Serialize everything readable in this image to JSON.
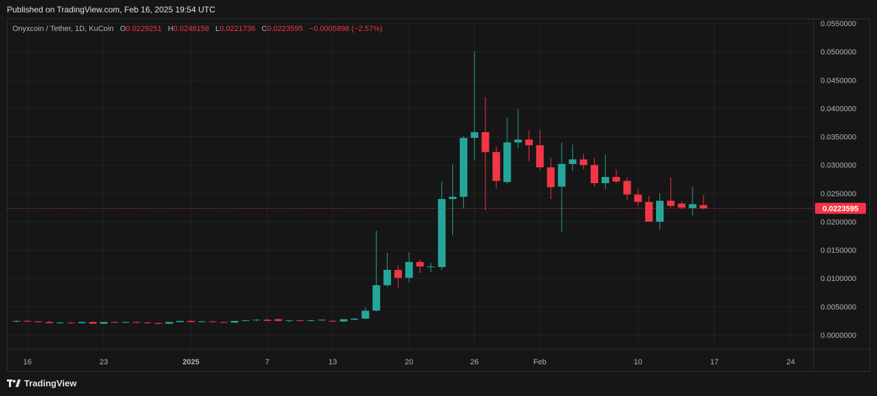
{
  "header": {
    "published": "Published on TradingView.com, Feb 16, 2025 19:54 UTC"
  },
  "legend": {
    "symbol": "Onyxcoin / Tether, 1D, KuCoin",
    "open_key": "O",
    "open": "0.0229251",
    "high_key": "H",
    "high": "0.0248158",
    "low_key": "L",
    "low": "0.0221736",
    "close_key": "C",
    "close": "0.0223595",
    "change": "−0.0005898 (−2.57%)"
  },
  "footer": {
    "brand": "TradingView",
    "logo_icon": "tradingview-logo-icon"
  },
  "colors": {
    "up": "#26a69a",
    "down": "#f23645",
    "price_line": "#f23645",
    "bg": "#161616",
    "grid": "#232323"
  },
  "chart_data": {
    "type": "candlestick",
    "ylim": [
      -0.002,
      0.056
    ],
    "y_ticks": [
      "0.0550000",
      "0.0500000",
      "0.0450000",
      "0.0400000",
      "0.0350000",
      "0.0300000",
      "0.0250000",
      "0.0200000",
      "0.0150000",
      "0.0100000",
      "0.0050000",
      "0.0000000"
    ],
    "y_tick_values": [
      0.055,
      0.05,
      0.045,
      0.04,
      0.035,
      0.03,
      0.025,
      0.02,
      0.015,
      0.01,
      0.005,
      0
    ],
    "x_ticks": [
      {
        "label": "16",
        "index": 1
      },
      {
        "label": "23",
        "index": 8
      },
      {
        "label": "2025",
        "index": 16,
        "bold": true
      },
      {
        "label": "7",
        "index": 23
      },
      {
        "label": "13",
        "index": 29
      },
      {
        "label": "20",
        "index": 36
      },
      {
        "label": "26",
        "index": 42
      },
      {
        "label": "Feb",
        "index": 48
      },
      {
        "label": "10",
        "index": 57
      },
      {
        "label": "17",
        "index": 64
      },
      {
        "label": "24",
        "index": 71
      }
    ],
    "last_price": 0.0223595,
    "last_price_label": "0.0223595",
    "candles": [
      {
        "o": 0.0024,
        "h": 0.0026,
        "l": 0.0023,
        "c": 0.0025
      },
      {
        "o": 0.0025,
        "h": 0.0026,
        "l": 0.0023,
        "c": 0.0024
      },
      {
        "o": 0.0024,
        "h": 0.0025,
        "l": 0.0022,
        "c": 0.0023
      },
      {
        "o": 0.0023,
        "h": 0.0025,
        "l": 0.0021,
        "c": 0.0021
      },
      {
        "o": 0.0021,
        "h": 0.0023,
        "l": 0.002,
        "c": 0.0022
      },
      {
        "o": 0.0022,
        "h": 0.0023,
        "l": 0.002,
        "c": 0.0021
      },
      {
        "o": 0.0021,
        "h": 0.0024,
        "l": 0.002,
        "c": 0.0023
      },
      {
        "o": 0.0023,
        "h": 0.0024,
        "l": 0.0021,
        "c": 0.002
      },
      {
        "o": 0.002,
        "h": 0.0023,
        "l": 0.0019,
        "c": 0.0023
      },
      {
        "o": 0.0023,
        "h": 0.0024,
        "l": 0.0021,
        "c": 0.0022
      },
      {
        "o": 0.0022,
        "h": 0.0024,
        "l": 0.0021,
        "c": 0.0023
      },
      {
        "o": 0.0023,
        "h": 0.0024,
        "l": 0.0021,
        "c": 0.0022
      },
      {
        "o": 0.0022,
        "h": 0.0023,
        "l": 0.002,
        "c": 0.0021
      },
      {
        "o": 0.0021,
        "h": 0.0023,
        "l": 0.0019,
        "c": 0.002
      },
      {
        "o": 0.002,
        "h": 0.0023,
        "l": 0.0019,
        "c": 0.0023
      },
      {
        "o": 0.0023,
        "h": 0.0025,
        "l": 0.0022,
        "c": 0.0025
      },
      {
        "o": 0.0025,
        "h": 0.0026,
        "l": 0.0023,
        "c": 0.0023
      },
      {
        "o": 0.0023,
        "h": 0.0025,
        "l": 0.0022,
        "c": 0.0024
      },
      {
        "o": 0.0024,
        "h": 0.0025,
        "l": 0.0022,
        "c": 0.0023
      },
      {
        "o": 0.0023,
        "h": 0.0024,
        "l": 0.0022,
        "c": 0.0022
      },
      {
        "o": 0.0022,
        "h": 0.0025,
        "l": 0.0021,
        "c": 0.0025
      },
      {
        "o": 0.0025,
        "h": 0.0027,
        "l": 0.0024,
        "c": 0.0026
      },
      {
        "o": 0.0026,
        "h": 0.0028,
        "l": 0.0025,
        "c": 0.0027
      },
      {
        "o": 0.0027,
        "h": 0.0029,
        "l": 0.0025,
        "c": 0.0025
      },
      {
        "o": 0.0028,
        "h": 0.0029,
        "l": 0.0024,
        "c": 0.0025
      },
      {
        "o": 0.0025,
        "h": 0.0026,
        "l": 0.0023,
        "c": 0.0026
      },
      {
        "o": 0.0026,
        "h": 0.0027,
        "l": 0.0024,
        "c": 0.0025
      },
      {
        "o": 0.0025,
        "h": 0.0027,
        "l": 0.0024,
        "c": 0.0026
      },
      {
        "o": 0.0026,
        "h": 0.0028,
        "l": 0.0025,
        "c": 0.0027
      },
      {
        "o": 0.0025,
        "h": 0.0026,
        "l": 0.0023,
        "c": 0.0024
      },
      {
        "o": 0.0024,
        "h": 0.0028,
        "l": 0.0023,
        "c": 0.0028
      },
      {
        "o": 0.0027,
        "h": 0.003,
        "l": 0.0026,
        "c": 0.0029
      },
      {
        "o": 0.0029,
        "h": 0.0048,
        "l": 0.0028,
        "c": 0.0043
      },
      {
        "o": 0.0043,
        "h": 0.0184,
        "l": 0.0042,
        "c": 0.0088
      },
      {
        "o": 0.0088,
        "h": 0.0145,
        "l": 0.0085,
        "c": 0.0115
      },
      {
        "o": 0.0115,
        "h": 0.0123,
        "l": 0.0082,
        "c": 0.0101
      },
      {
        "o": 0.0101,
        "h": 0.0146,
        "l": 0.0093,
        "c": 0.0129
      },
      {
        "o": 0.0129,
        "h": 0.0133,
        "l": 0.011,
        "c": 0.0121
      },
      {
        "o": 0.0121,
        "h": 0.0127,
        "l": 0.0111,
        "c": 0.0121
      },
      {
        "o": 0.012,
        "h": 0.027,
        "l": 0.0115,
        "c": 0.024
      },
      {
        "o": 0.024,
        "h": 0.0301,
        "l": 0.0176,
        "c": 0.0244
      },
      {
        "o": 0.0244,
        "h": 0.0351,
        "l": 0.0223,
        "c": 0.0348
      },
      {
        "o": 0.0348,
        "h": 0.05,
        "l": 0.031,
        "c": 0.0358
      },
      {
        "o": 0.0358,
        "h": 0.042,
        "l": 0.022,
        "c": 0.0323
      },
      {
        "o": 0.0323,
        "h": 0.0333,
        "l": 0.0258,
        "c": 0.0272
      },
      {
        "o": 0.027,
        "h": 0.0383,
        "l": 0.0267,
        "c": 0.034
      },
      {
        "o": 0.034,
        "h": 0.0399,
        "l": 0.033,
        "c": 0.0345
      },
      {
        "o": 0.0345,
        "h": 0.0362,
        "l": 0.0307,
        "c": 0.0335
      },
      {
        "o": 0.0335,
        "h": 0.0362,
        "l": 0.029,
        "c": 0.0296
      },
      {
        "o": 0.0296,
        "h": 0.0313,
        "l": 0.024,
        "c": 0.0261
      },
      {
        "o": 0.0262,
        "h": 0.034,
        "l": 0.0182,
        "c": 0.0302
      },
      {
        "o": 0.0302,
        "h": 0.0336,
        "l": 0.0289,
        "c": 0.031
      },
      {
        "o": 0.031,
        "h": 0.032,
        "l": 0.0292,
        "c": 0.03
      },
      {
        "o": 0.03,
        "h": 0.0312,
        "l": 0.0262,
        "c": 0.0268
      },
      {
        "o": 0.0268,
        "h": 0.0318,
        "l": 0.0258,
        "c": 0.0279
      },
      {
        "o": 0.0279,
        "h": 0.0292,
        "l": 0.0268,
        "c": 0.0271
      },
      {
        "o": 0.0272,
        "h": 0.0278,
        "l": 0.0238,
        "c": 0.0248
      },
      {
        "o": 0.0248,
        "h": 0.0258,
        "l": 0.0228,
        "c": 0.0235
      },
      {
        "o": 0.0235,
        "h": 0.0246,
        "l": 0.02,
        "c": 0.02
      },
      {
        "o": 0.02,
        "h": 0.025,
        "l": 0.0186,
        "c": 0.0237
      },
      {
        "o": 0.0237,
        "h": 0.0278,
        "l": 0.0225,
        "c": 0.0228
      },
      {
        "o": 0.0232,
        "h": 0.0236,
        "l": 0.0222,
        "c": 0.0225
      },
      {
        "o": 0.0224,
        "h": 0.0262,
        "l": 0.0211,
        "c": 0.0231
      },
      {
        "o": 0.0229251,
        "h": 0.0248158,
        "l": 0.0221736,
        "c": 0.0223595
      }
    ]
  }
}
